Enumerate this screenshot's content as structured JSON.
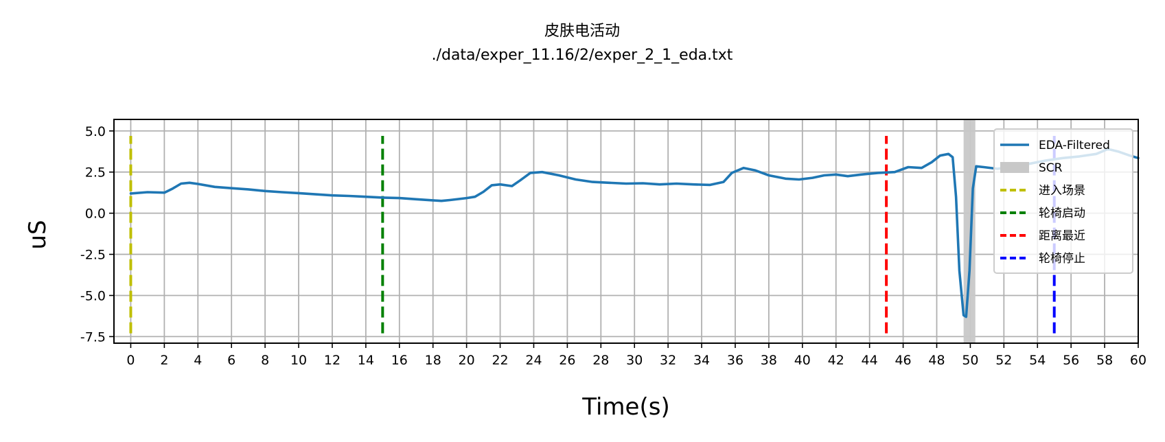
{
  "chart_data": {
    "type": "line",
    "title": "皮肤电活动",
    "subtitle": "./data/exper_11.16/2/exper_2_1_eda.txt",
    "xlabel": "Time(s)",
    "ylabel": "uS",
    "xlim": [
      -1,
      60
    ],
    "ylim": [
      -7.9,
      5.7
    ],
    "grid": true,
    "x_ticks": [
      0,
      2,
      4,
      6,
      8,
      10,
      12,
      14,
      16,
      18,
      20,
      22,
      24,
      26,
      28,
      30,
      32,
      34,
      36,
      38,
      40,
      42,
      44,
      46,
      48,
      50,
      52,
      54,
      56,
      58,
      60
    ],
    "y_ticks": [
      5.0,
      2.5,
      0.0,
      -2.5,
      -5.0,
      -7.5
    ],
    "y_tick_labels": [
      "5.0",
      "2.5",
      "0.0",
      "-2.5",
      "-5.0",
      "-7.5"
    ],
    "series": [
      {
        "name": "EDA-Filtered",
        "color": "#1f77b4",
        "points": [
          [
            0,
            1.2
          ],
          [
            1,
            1.28
          ],
          [
            2,
            1.25
          ],
          [
            2.5,
            1.5
          ],
          [
            3,
            1.8
          ],
          [
            3.5,
            1.85
          ],
          [
            4,
            1.78
          ],
          [
            5,
            1.6
          ],
          [
            6,
            1.52
          ],
          [
            7,
            1.45
          ],
          [
            8,
            1.35
          ],
          [
            9,
            1.28
          ],
          [
            10,
            1.22
          ],
          [
            11,
            1.15
          ],
          [
            12,
            1.08
          ],
          [
            13,
            1.05
          ],
          [
            14,
            1.0
          ],
          [
            15,
            0.95
          ],
          [
            16,
            0.92
          ],
          [
            17,
            0.85
          ],
          [
            18,
            0.78
          ],
          [
            18.5,
            0.75
          ],
          [
            19,
            0.8
          ],
          [
            20,
            0.92
          ],
          [
            20.5,
            1.0
          ],
          [
            21,
            1.3
          ],
          [
            21.5,
            1.7
          ],
          [
            22,
            1.75
          ],
          [
            22.7,
            1.65
          ],
          [
            23.2,
            2.0
          ],
          [
            23.8,
            2.45
          ],
          [
            24.5,
            2.5
          ],
          [
            25.5,
            2.3
          ],
          [
            26.5,
            2.05
          ],
          [
            27.5,
            1.9
          ],
          [
            28.5,
            1.85
          ],
          [
            29.5,
            1.8
          ],
          [
            30.5,
            1.82
          ],
          [
            31.5,
            1.75
          ],
          [
            32.5,
            1.8
          ],
          [
            33.5,
            1.75
          ],
          [
            34.5,
            1.72
          ],
          [
            35.3,
            1.9
          ],
          [
            35.8,
            2.45
          ],
          [
            36.5,
            2.75
          ],
          [
            37.2,
            2.6
          ],
          [
            38,
            2.3
          ],
          [
            39,
            2.1
          ],
          [
            39.8,
            2.05
          ],
          [
            40.6,
            2.15
          ],
          [
            41.3,
            2.3
          ],
          [
            42,
            2.35
          ],
          [
            42.7,
            2.25
          ],
          [
            43.5,
            2.35
          ],
          [
            44.5,
            2.45
          ],
          [
            45.5,
            2.5
          ],
          [
            46.3,
            2.8
          ],
          [
            47.1,
            2.75
          ],
          [
            47.7,
            3.1
          ],
          [
            48.2,
            3.5
          ],
          [
            48.7,
            3.6
          ],
          [
            48.95,
            3.4
          ],
          [
            49.15,
            1.0
          ],
          [
            49.35,
            -3.5
          ],
          [
            49.6,
            -6.2
          ],
          [
            49.75,
            -6.3
          ],
          [
            49.95,
            -3.5
          ],
          [
            50.15,
            1.5
          ],
          [
            50.35,
            2.85
          ],
          [
            50.8,
            2.8
          ],
          [
            51.6,
            2.7
          ],
          [
            52.5,
            2.8
          ],
          [
            53.5,
            3.0
          ],
          [
            54.5,
            3.2
          ],
          [
            55.5,
            3.35
          ],
          [
            56.5,
            3.45
          ],
          [
            57.5,
            3.6
          ],
          [
            58.2,
            3.9
          ],
          [
            58.8,
            3.75
          ],
          [
            59.5,
            3.5
          ],
          [
            60,
            3.35
          ]
        ]
      }
    ],
    "scr_span": {
      "name": "SCR",
      "x_start": 49.6,
      "x_end": 50.3,
      "color": "#c8c8c8"
    },
    "vlines": [
      {
        "name": "进入场景",
        "x": 0,
        "color": "#bfbf00"
      },
      {
        "name": "轮椅启动",
        "x": 15,
        "color": "#008000"
      },
      {
        "name": "距离最近",
        "x": 45,
        "color": "#ff0000"
      },
      {
        "name": "轮椅停止",
        "x": 55,
        "color": "#0000ff"
      }
    ],
    "vline_y_range": [
      -7.3,
      4.7
    ],
    "legend": {
      "position": "top-right",
      "entries": [
        {
          "label": "EDA-Filtered",
          "style": "line",
          "color": "#1f77b4"
        },
        {
          "label": "SCR",
          "style": "patch",
          "color": "#c8c8c8"
        },
        {
          "label": "进入场景",
          "style": "dashed",
          "color": "#bfbf00"
        },
        {
          "label": "轮椅启动",
          "style": "dashed",
          "color": "#008000"
        },
        {
          "label": "距离最近",
          "style": "dashed",
          "color": "#ff0000"
        },
        {
          "label": "轮椅停止",
          "style": "dashed",
          "color": "#0000ff"
        }
      ]
    }
  }
}
